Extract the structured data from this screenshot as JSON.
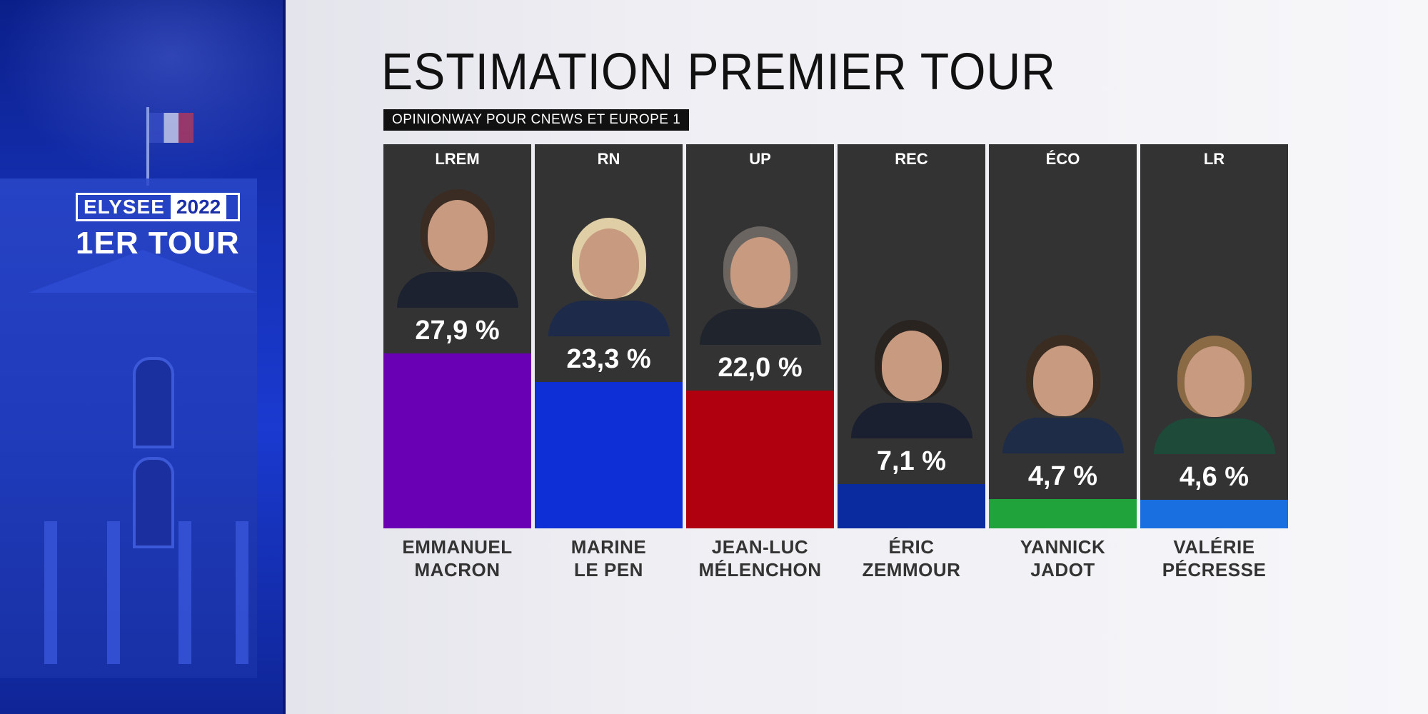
{
  "badge": {
    "line1_left": "ELYSEE",
    "line1_right": "2022",
    "line2": "1ER TOUR"
  },
  "header": {
    "title": "ESTIMATION PREMIER TOUR",
    "source": "OPINIONWAY POUR CNEWS ET EUROPE 1"
  },
  "chart_data": {
    "type": "bar",
    "title": "ESTIMATION PREMIER TOUR",
    "subtitle": "OPINIONWAY POUR CNEWS ET EUROPE 1",
    "categories": [
      "EMMANUEL MACRON",
      "MARINE LE PEN",
      "JEAN-LUC MÉLENCHON",
      "ÉRIC ZEMMOUR",
      "YANNICK JADOT",
      "VALÉRIE PÉCRESSE"
    ],
    "values": [
      27.9,
      23.3,
      22.0,
      7.1,
      4.7,
      4.6
    ],
    "unit": "%",
    "ylim": [
      0,
      30
    ],
    "grid": false,
    "legend": "none",
    "candidates": [
      {
        "party": "LREM",
        "first": "EMMANUEL",
        "last": "MACRON",
        "value": 27.9,
        "label": "27,9 %",
        "color": "#6a00b4",
        "hair": "#3a2c22",
        "suit": "#1c2230"
      },
      {
        "party": "RN",
        "first": "MARINE",
        "last": "LE PEN",
        "value": 23.3,
        "label": "23,3 %",
        "color": "#0f2fd6",
        "hair": "#e0cfa6",
        "suit": "#1d2a4a"
      },
      {
        "party": "UP",
        "first": "JEAN-LUC",
        "last": "MÉLENCHON",
        "value": 22.0,
        "label": "22,0 %",
        "color": "#b0000f",
        "hair": "#6b6561",
        "suit": "#20242c"
      },
      {
        "party": "REC",
        "first": "ÉRIC",
        "last": "ZEMMOUR",
        "value": 7.1,
        "label": "7,1 %",
        "color": "#0a2aa0",
        "hair": "#2a2420",
        "suit": "#1a2030"
      },
      {
        "party": "ÉCO",
        "first": "YANNICK",
        "last": "JADOT",
        "value": 4.7,
        "label": "4,7 %",
        "color": "#1fa33a",
        "hair": "#3b2c22",
        "suit": "#1f2c48"
      },
      {
        "party": "LR",
        "first": "VALÉRIE",
        "last": "PÉCRESSE",
        "value": 4.6,
        "label": "4,6 %",
        "color": "#1a6fe0",
        "hair": "#8a6a45",
        "suit": "#1e4a3a"
      }
    ]
  }
}
